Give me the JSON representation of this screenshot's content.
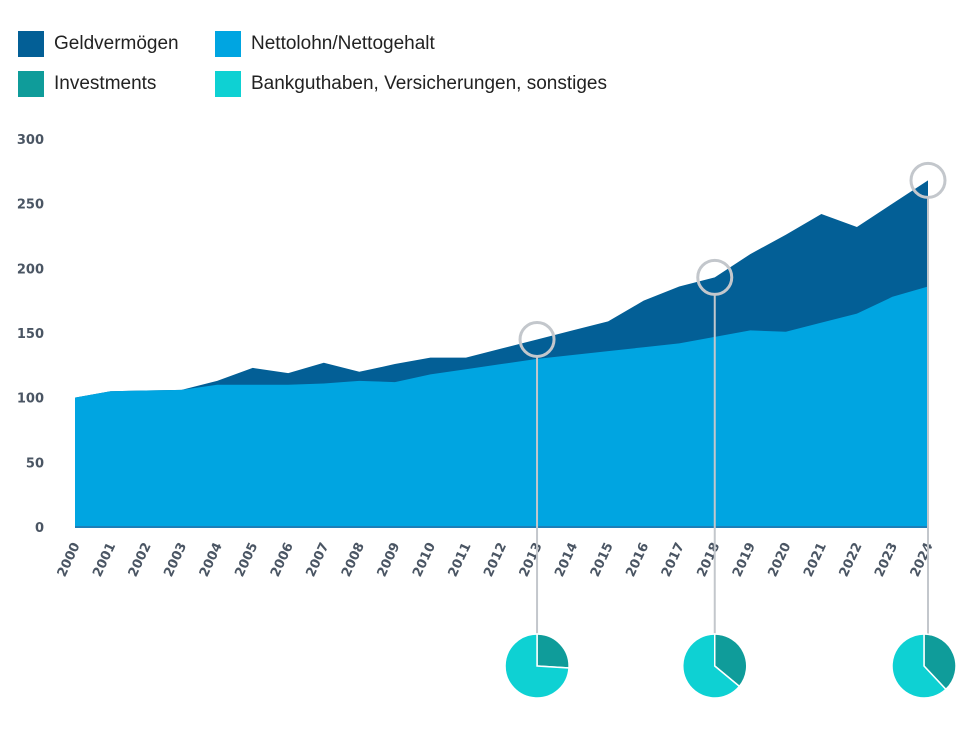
{
  "chart_data": {
    "type": "area",
    "title": "",
    "xlabel": "",
    "ylabel": "",
    "ylim": [
      0,
      300
    ],
    "yticks": [
      "0",
      "50",
      "100",
      "150",
      "200",
      "250",
      "300"
    ],
    "categories": [
      "2000",
      "2001",
      "2002",
      "2003",
      "2004",
      "2005",
      "2006",
      "2007",
      "2008",
      "2009",
      "2010",
      "2011",
      "2012",
      "2013",
      "2014",
      "2015",
      "2016",
      "2017",
      "2018",
      "2019",
      "2020",
      "2021",
      "2022",
      "2023",
      "2024"
    ],
    "series": [
      {
        "name": "Geldvermögen",
        "color": "#035f96",
        "values": [
          100,
          105,
          105.5,
          106,
          113,
          123,
          119,
          127,
          120,
          126,
          131,
          131,
          138,
          145,
          152,
          159,
          175,
          186,
          193,
          211,
          226,
          242,
          232,
          250,
          268
        ]
      },
      {
        "name": "Nettolohn/Nettogehalt",
        "color": "#00a5e1",
        "values": [
          100,
          105,
          105.5,
          106,
          110,
          110,
          110,
          111,
          113,
          112,
          118,
          122,
          126,
          130,
          133,
          136,
          139,
          142,
          147,
          152,
          151,
          158,
          165,
          178,
          186
        ]
      }
    ],
    "pies": [
      {
        "year": "2013",
        "slices": [
          {
            "name": "Investments",
            "value": 26
          },
          {
            "name": "Bankguthaben, Versicherungen, sonstiges",
            "value": 74
          }
        ]
      },
      {
        "year": "2018",
        "slices": [
          {
            "name": "Investments",
            "value": 36
          },
          {
            "name": "Bankguthaben, Versicherungen, sonstiges",
            "value": 64
          }
        ]
      },
      {
        "year": "2024",
        "slices": [
          {
            "name": "Investments",
            "value": 38
          },
          {
            "name": "Bankguthaben, Versicherungen, sonstiges",
            "value": 62
          }
        ]
      }
    ],
    "legend": [
      {
        "label": "Geldvermögen",
        "color": "#035f96"
      },
      {
        "label": "Nettolohn/Nettogehalt",
        "color": "#00a5e1"
      },
      {
        "label": "Investments",
        "color": "#0f9c9a"
      },
      {
        "label": "Bankguthaben, Versicherungen, sonstiges",
        "color": "#0ed1d3"
      }
    ],
    "legend_placement": "top-left",
    "grid": false
  }
}
